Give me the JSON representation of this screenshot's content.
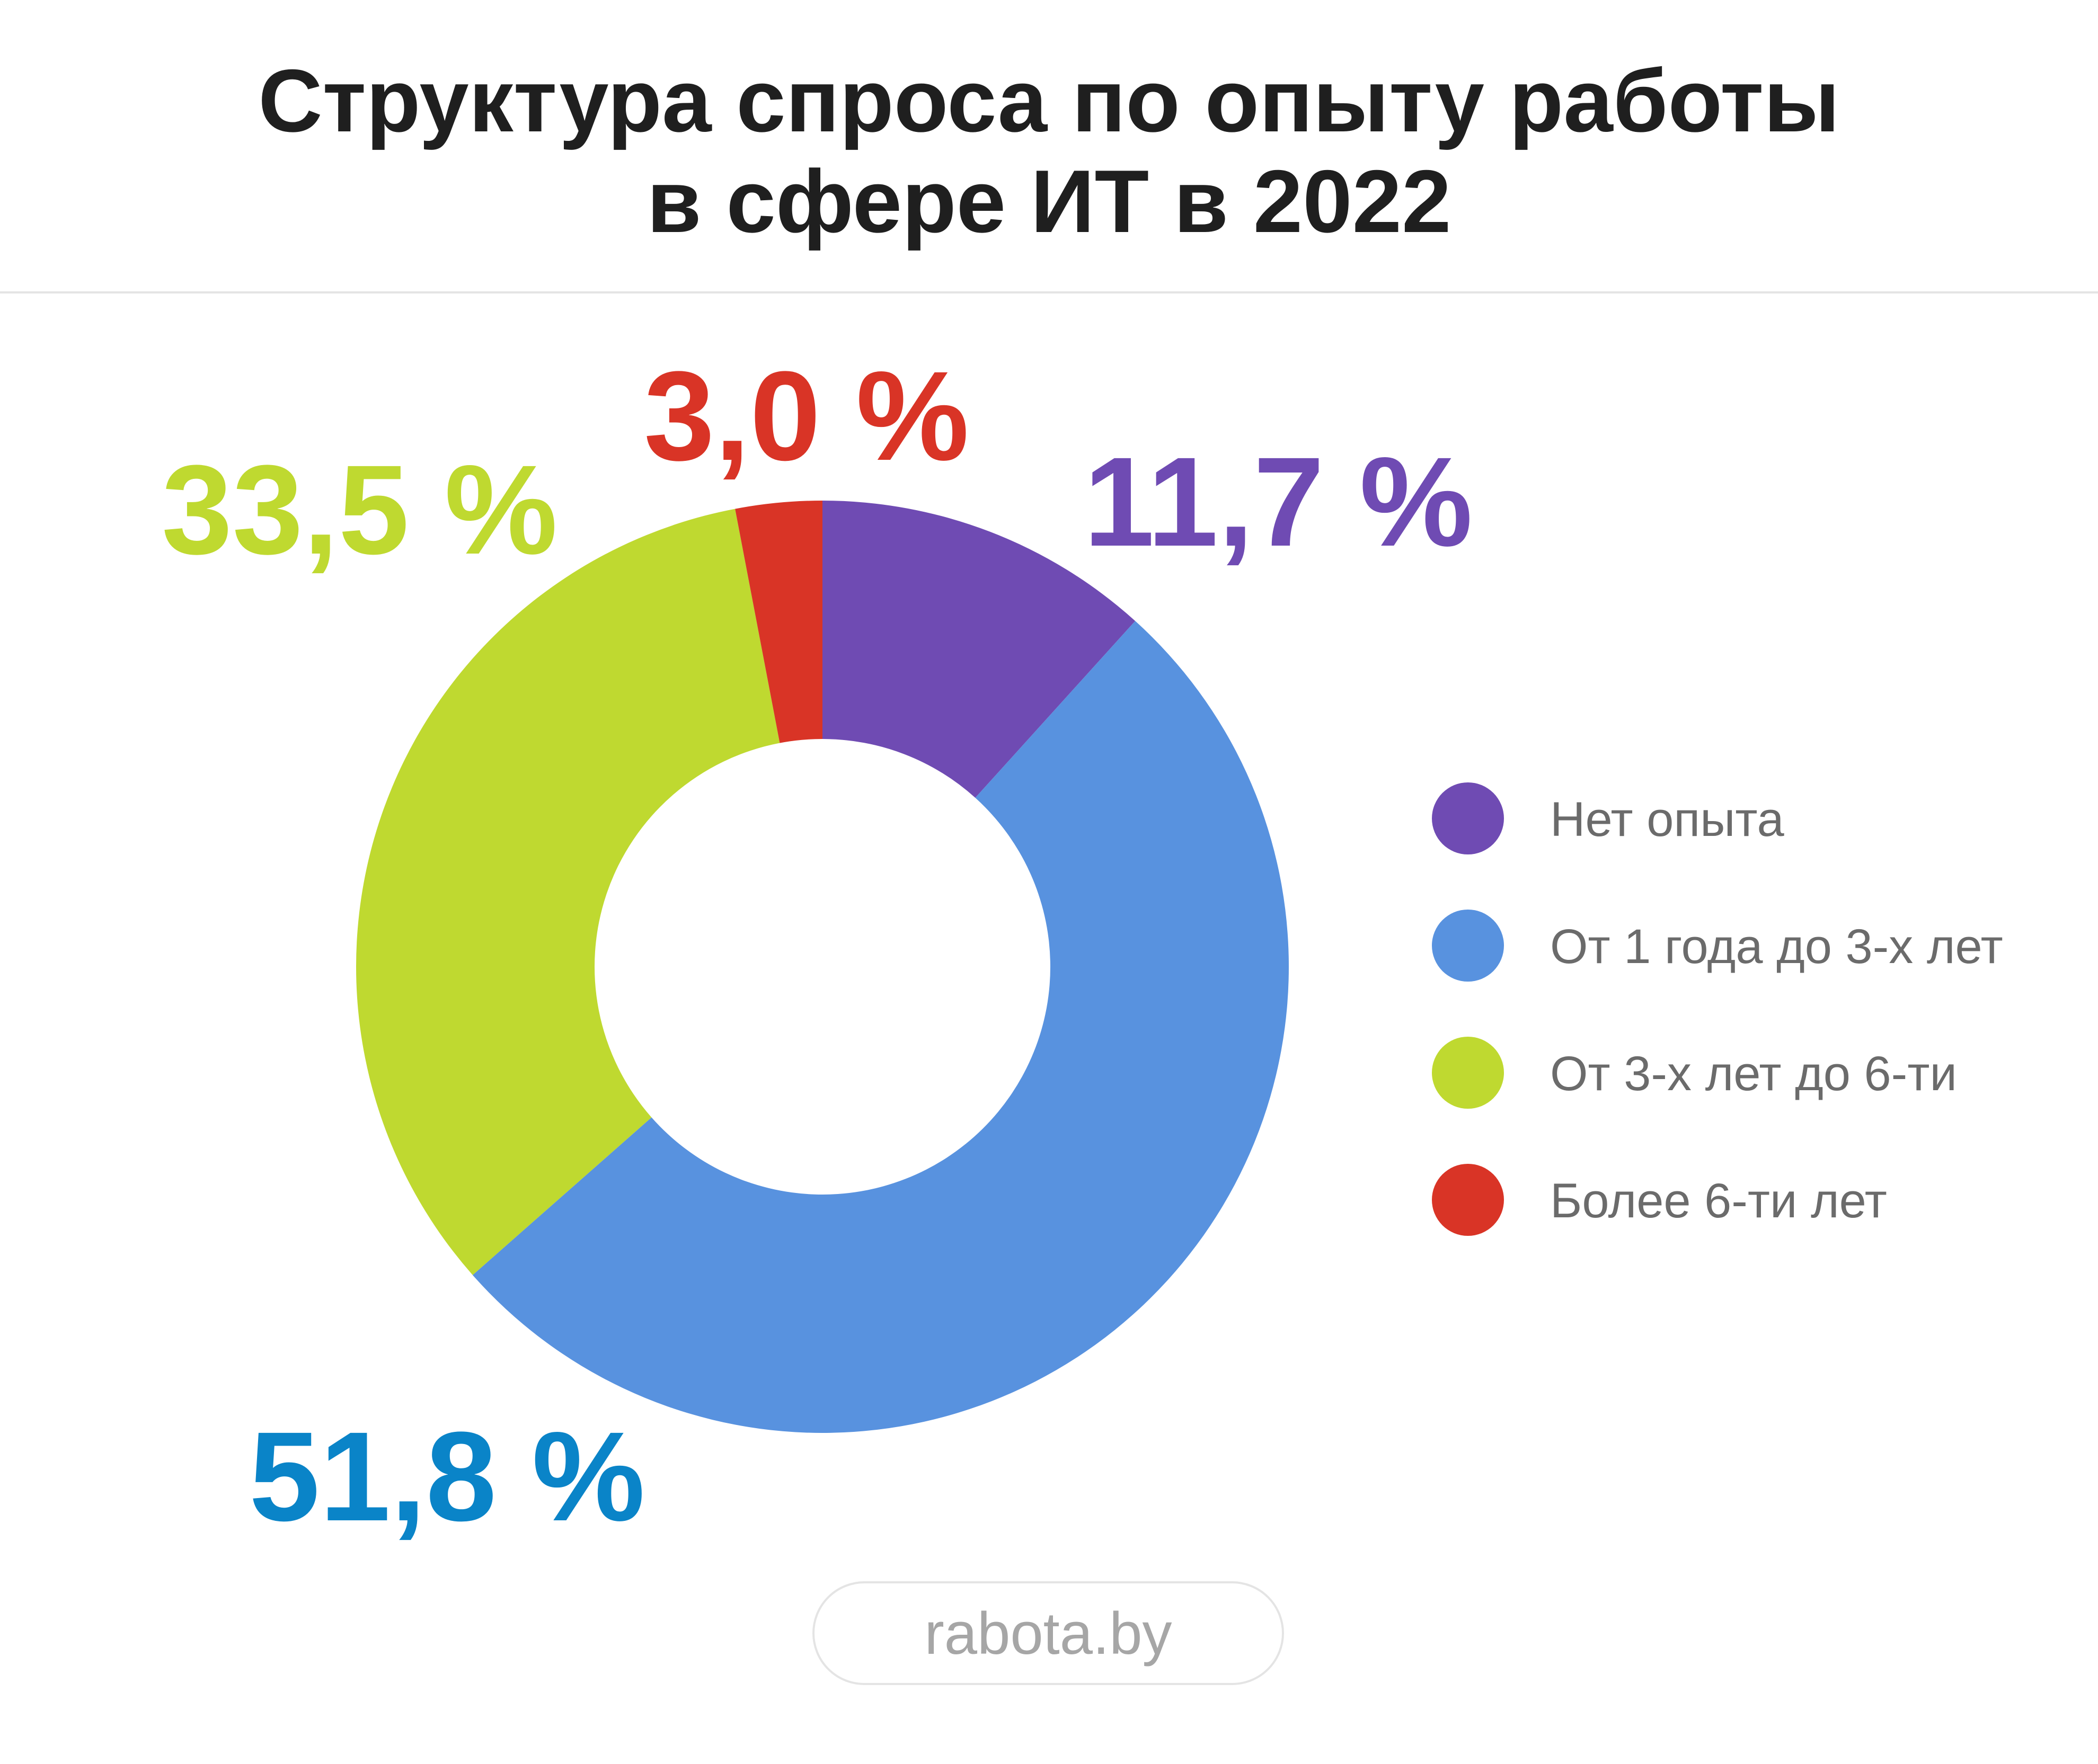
{
  "chart_data": {
    "type": "pie",
    "style": "donut",
    "title": "Структура спроса по опыту работы в сфере ИТ в 2022",
    "title_lines": [
      "Структура спроса по опыту работы",
      "в сфере ИТ в 2022"
    ],
    "unit": "%",
    "series": [
      {
        "name": "Нет опыта",
        "value": 11.7,
        "label": "11,7 %",
        "color": "#6f4bb3",
        "label_color": "#6f4bb3"
      },
      {
        "name": "От 1 года до 3-х лет",
        "value": 51.8,
        "label": "51,8 %",
        "color": "#5892df",
        "label_color": "#0a84c8"
      },
      {
        "name": "От 3-х лет до 6-ти",
        "value": 33.5,
        "label": "33,5 %",
        "color": "#bfd930",
        "label_color": "#bfd930"
      },
      {
        "name": "Более 6-ти лет",
        "value": 3.0,
        "label": "3,0 %",
        "color": "#d93426",
        "label_color": "#d93426"
      }
    ],
    "start_angle": "top (12 o'clock)",
    "direction": "clockwise",
    "legend_position": "right"
  },
  "source": {
    "label": "rabota.by"
  }
}
